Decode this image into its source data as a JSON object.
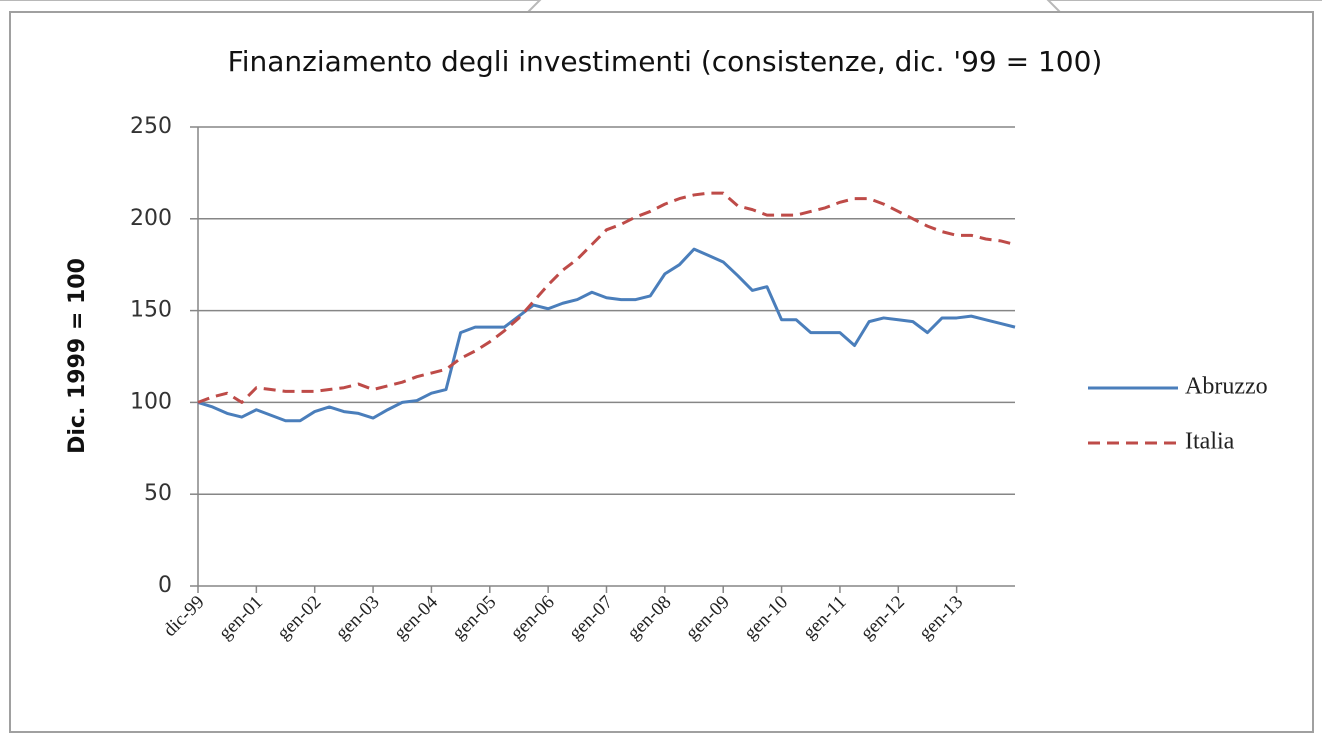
{
  "chart_data": {
    "type": "line",
    "title": "Finanziamento degli investimenti (consistenze, dic. '99 = 100)",
    "y_label": "Dic. 1999 = 100",
    "categories": [
      "dic-99",
      null,
      null,
      null,
      "gen-01",
      null,
      null,
      null,
      "gen-02",
      null,
      null,
      null,
      "gen-03",
      null,
      null,
      null,
      "gen-04",
      null,
      null,
      null,
      "gen-05",
      null,
      null,
      null,
      "gen-06",
      null,
      null,
      null,
      "gen-07",
      null,
      null,
      null,
      "gen-08",
      null,
      null,
      null,
      "gen-09",
      null,
      null,
      null,
      "gen-10",
      null,
      null,
      null,
      "gen-11",
      null,
      null,
      null,
      "gen-12",
      null,
      null,
      null,
      "gen-13",
      null,
      null,
      null,
      null
    ],
    "series": [
      {
        "name": "Abruzzo",
        "color": "#4a7ebb",
        "dash": false,
        "values": [
          100,
          97.5,
          94,
          92,
          96,
          93,
          90,
          90,
          95,
          97.5,
          95,
          94,
          91.5,
          96,
          100,
          101,
          105,
          107,
          138,
          141,
          141,
          141,
          147,
          153,
          151,
          154,
          156,
          160,
          157,
          156,
          156,
          158,
          170,
          175,
          183.5,
          180,
          176.5,
          169,
          161,
          163,
          145,
          145,
          138,
          138,
          138,
          131,
          144,
          146,
          145,
          144,
          138,
          146,
          146,
          147,
          145,
          143,
          141
        ]
      },
      {
        "name": "Italia",
        "color": "#be4b48",
        "dash": true,
        "values": [
          100,
          103,
          105,
          100,
          108,
          107,
          106,
          106,
          106,
          107,
          108,
          110,
          107,
          109,
          111,
          114,
          116,
          118,
          124,
          128,
          133,
          139,
          146,
          155,
          164,
          172,
          178,
          186,
          194,
          197,
          201,
          204,
          208,
          211,
          213,
          214,
          214,
          207,
          205,
          202,
          202,
          202,
          204,
          206,
          209,
          211,
          211,
          208,
          204,
          200,
          196,
          193,
          191,
          191,
          189,
          188,
          186
        ]
      }
    ],
    "ylim": [
      0,
      250
    ],
    "yticks": [
      0,
      50,
      100,
      150,
      200,
      250
    ],
    "grid": true,
    "legend": "right"
  }
}
